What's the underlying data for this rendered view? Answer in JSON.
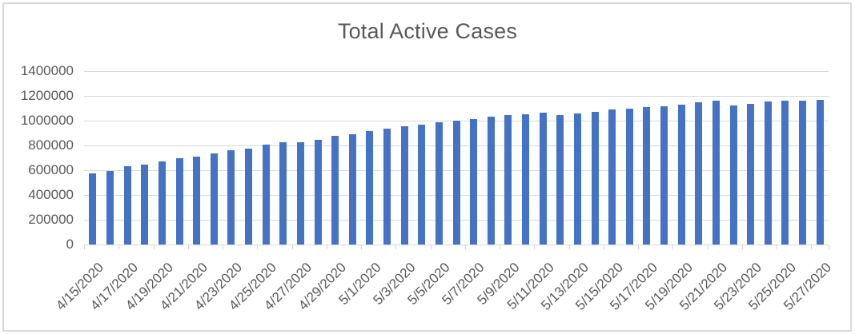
{
  "chart_data": {
    "type": "bar",
    "title": "Total Active Cases",
    "xlabel": "",
    "ylabel": "",
    "legend": "none",
    "grid": true,
    "ylim": [
      0,
      1400000
    ],
    "yticks": [
      0,
      200000,
      400000,
      600000,
      800000,
      1000000,
      1200000,
      1400000
    ],
    "xtick_interval": 2,
    "xtick_labels": [
      "4/15/2020",
      "4/17/2020",
      "4/19/2020",
      "4/21/2020",
      "4/23/2020",
      "4/25/2020",
      "4/27/2020",
      "4/29/2020",
      "5/1/2020",
      "5/3/2020",
      "5/5/2020",
      "5/7/2020",
      "5/9/2020",
      "5/11/2020",
      "5/13/2020",
      "5/15/2020",
      "5/17/2020",
      "5/19/2020",
      "5/21/2020",
      "5/23/2020",
      "5/25/2020",
      "5/27/2020"
    ],
    "x": [
      "4/15/2020",
      "4/16/2020",
      "4/17/2020",
      "4/18/2020",
      "4/19/2020",
      "4/20/2020",
      "4/21/2020",
      "4/22/2020",
      "4/23/2020",
      "4/24/2020",
      "4/25/2020",
      "4/26/2020",
      "4/27/2020",
      "4/28/2020",
      "4/29/2020",
      "4/30/2020",
      "5/1/2020",
      "5/2/2020",
      "5/3/2020",
      "5/4/2020",
      "5/5/2020",
      "5/6/2020",
      "5/7/2020",
      "5/8/2020",
      "5/9/2020",
      "5/10/2020",
      "5/11/2020",
      "5/12/2020",
      "5/13/2020",
      "5/14/2020",
      "5/15/2020",
      "5/16/2020",
      "5/17/2020",
      "5/18/2020",
      "5/19/2020",
      "5/20/2020",
      "5/21/2020",
      "5/22/2020",
      "5/23/2020",
      "5/24/2020",
      "5/25/2020",
      "5/26/2020",
      "5/27/2020"
    ],
    "values": [
      577000,
      597000,
      630000,
      648000,
      674000,
      696000,
      710000,
      737000,
      763000,
      775000,
      806000,
      829000,
      826000,
      846000,
      876000,
      891000,
      917000,
      937000,
      955000,
      970000,
      985000,
      998000,
      1015000,
      1031000,
      1048000,
      1050000,
      1067000,
      1046000,
      1059000,
      1074000,
      1090000,
      1098000,
      1113000,
      1118000,
      1131000,
      1146000,
      1163000,
      1126000,
      1137000,
      1152000,
      1163000,
      1163000,
      1170000
    ],
    "colors": {
      "bar": "#4472C4",
      "gridline": "#D9D9D9",
      "axis_line": "#D9D9D9",
      "tick": "#D1D1D1",
      "text": "#595959",
      "border": "#D9D9D9",
      "background": "#FFFFFF"
    }
  }
}
